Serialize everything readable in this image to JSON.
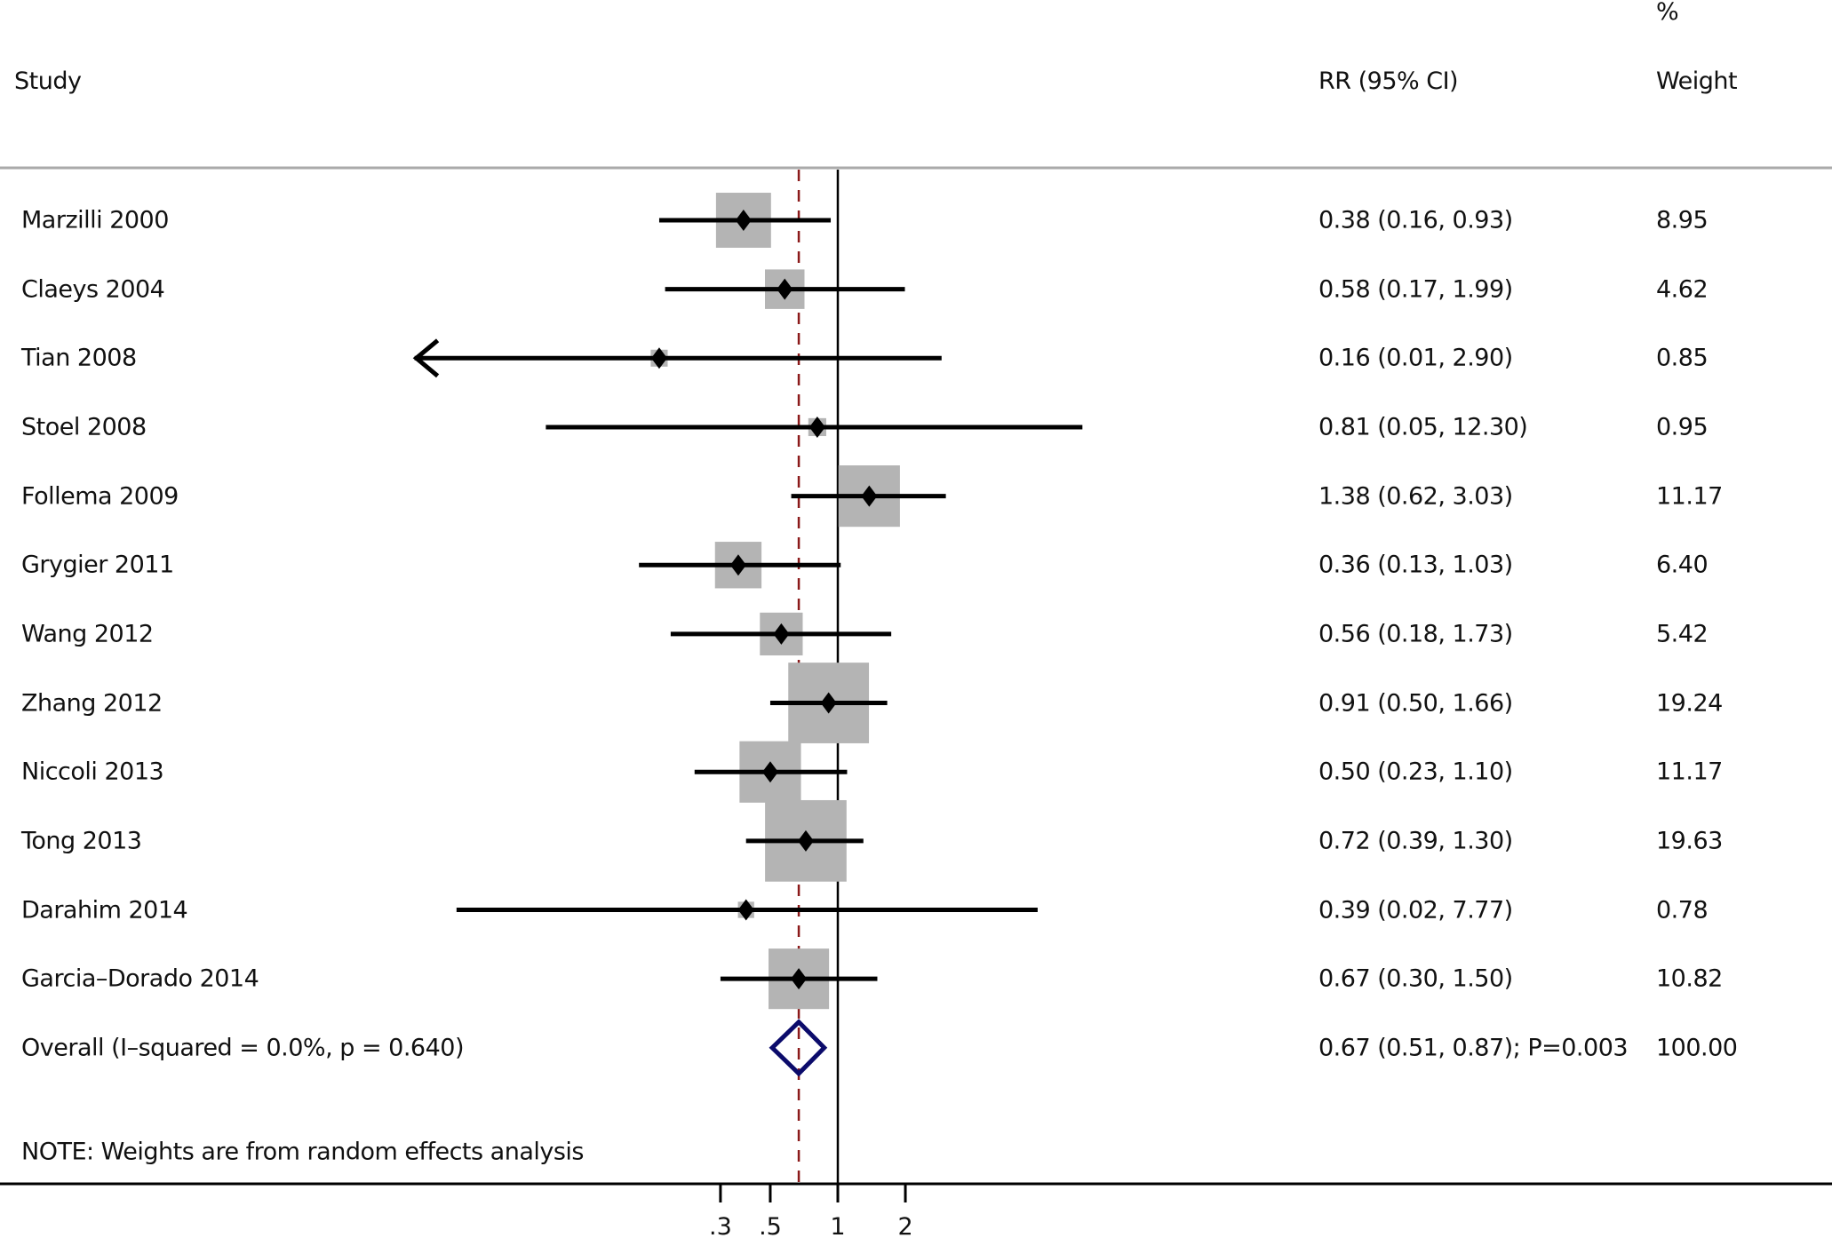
{
  "headers": {
    "study": "Study",
    "rr": "RR (95% CI)",
    "weight_top": "%",
    "weight": "Weight"
  },
  "note": "NOTE: Weights are from random effects analysis",
  "colors": {
    "box": "#b4b4b4",
    "line": "#000000",
    "null_line": "#000000",
    "overall_line": "#8b1a1a",
    "diamond": "#0b0b6b",
    "header_rule": "#aaaaaa"
  },
  "chart_data": {
    "type": "forest",
    "measure": "RR",
    "scale": "log",
    "xlim": [
      0.013,
      15
    ],
    "xticks": [
      0.3,
      0.5,
      1,
      2
    ],
    "xtick_labels": [
      ".3",
      ".5",
      "1",
      "2"
    ],
    "null_value": 1,
    "studies": [
      {
        "name": "Marzilli 2000",
        "rr": 0.38,
        "lo": 0.16,
        "hi": 0.93,
        "weight": 8.95,
        "ci_text": "0.38 (0.16, 0.93)",
        "weight_text": "8.95"
      },
      {
        "name": "Claeys 2004",
        "rr": 0.58,
        "lo": 0.17,
        "hi": 1.99,
        "weight": 4.62,
        "ci_text": "0.58 (0.17, 1.99)",
        "weight_text": "4.62"
      },
      {
        "name": "Tian 2008",
        "rr": 0.16,
        "lo": 0.01,
        "hi": 2.9,
        "weight": 0.85,
        "ci_text": "0.16 (0.01, 2.90)",
        "weight_text": "0.85",
        "lo_clipped": true
      },
      {
        "name": "Stoel 2008",
        "rr": 0.81,
        "lo": 0.05,
        "hi": 12.3,
        "weight": 0.95,
        "ci_text": "0.81 (0.05, 12.30)",
        "weight_text": "0.95"
      },
      {
        "name": "Follema 2009",
        "rr": 1.38,
        "lo": 0.62,
        "hi": 3.03,
        "weight": 11.17,
        "ci_text": "1.38 (0.62, 3.03)",
        "weight_text": "11.17"
      },
      {
        "name": "Grygier 2011",
        "rr": 0.36,
        "lo": 0.13,
        "hi": 1.03,
        "weight": 6.4,
        "ci_text": "0.36 (0.13, 1.03)",
        "weight_text": "6.40"
      },
      {
        "name": "Wang 2012",
        "rr": 0.56,
        "lo": 0.18,
        "hi": 1.73,
        "weight": 5.42,
        "ci_text": "0.56 (0.18, 1.73)",
        "weight_text": "5.42"
      },
      {
        "name": "Zhang 2012",
        "rr": 0.91,
        "lo": 0.5,
        "hi": 1.66,
        "weight": 19.24,
        "ci_text": "0.91 (0.50, 1.66)",
        "weight_text": "19.24"
      },
      {
        "name": "Niccoli 2013",
        "rr": 0.5,
        "lo": 0.23,
        "hi": 1.1,
        "weight": 11.17,
        "ci_text": "0.50 (0.23, 1.10)",
        "weight_text": "11.17"
      },
      {
        "name": "Tong 2013",
        "rr": 0.72,
        "lo": 0.39,
        "hi": 1.3,
        "weight": 19.63,
        "ci_text": "0.72 (0.39, 1.30)",
        "weight_text": "19.63"
      },
      {
        "name": "Darahim 2014",
        "rr": 0.39,
        "lo": 0.02,
        "hi": 7.77,
        "weight": 0.78,
        "ci_text": "0.39 (0.02, 7.77)",
        "weight_text": "0.78"
      },
      {
        "name": "Garcia–Dorado 2014",
        "rr": 0.67,
        "lo": 0.3,
        "hi": 1.5,
        "weight": 10.82,
        "ci_text": "0.67 (0.30, 1.50)",
        "weight_text": "10.82"
      }
    ],
    "overall": {
      "label": "Overall  (I–squared = 0.0%, p = 0.640)",
      "rr": 0.67,
      "lo": 0.51,
      "hi": 0.87,
      "p": 0.003,
      "ci_text": "0.67 (0.51, 0.87); P=0.003",
      "weight_text": "100.00",
      "i_squared": "0.0%",
      "heterogeneity_p": 0.64
    }
  }
}
